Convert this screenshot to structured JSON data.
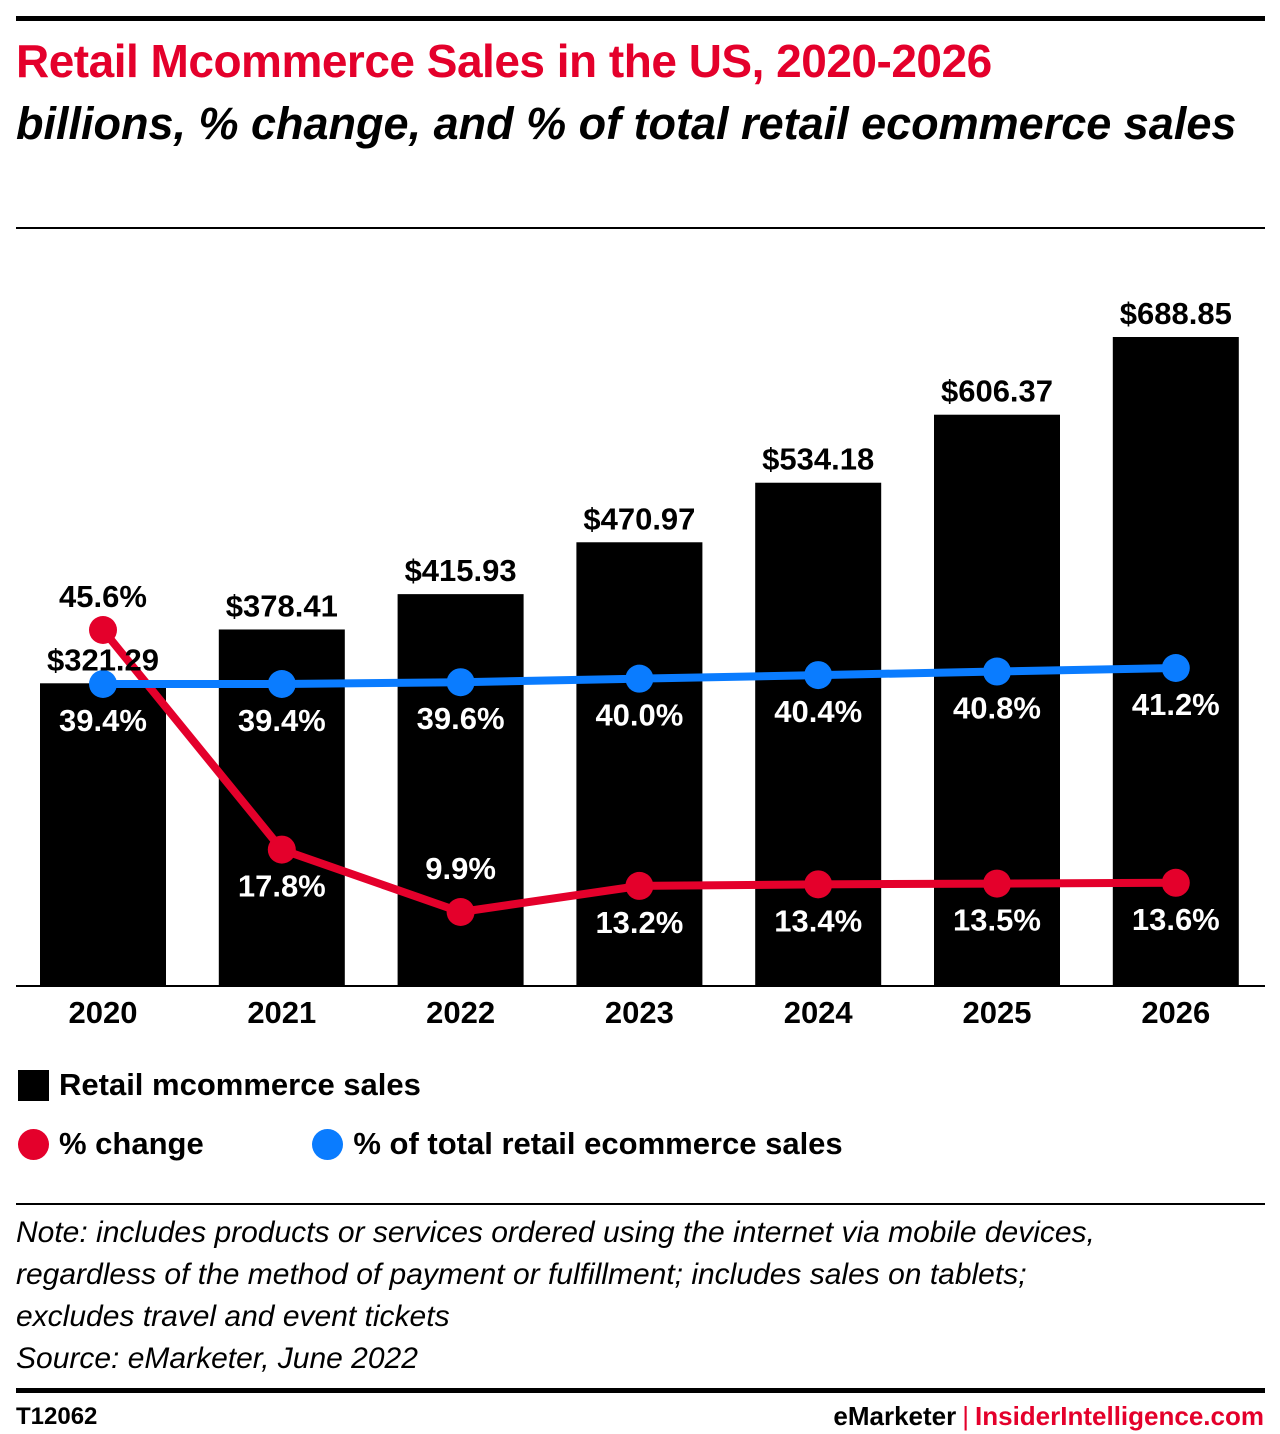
{
  "header": {
    "title": "Retail Mcommerce Sales in the US, 2020-2026",
    "subtitle": "billions, % change, and % of total retail ecommerce sales"
  },
  "chart_data": {
    "type": "bar",
    "categories": [
      "2020",
      "2021",
      "2022",
      "2023",
      "2024",
      "2025",
      "2026"
    ],
    "series": [
      {
        "name": "Retail mcommerce sales",
        "type": "bar",
        "values": [
          321.29,
          378.41,
          415.93,
          470.97,
          534.18,
          606.37,
          688.85
        ],
        "labels": [
          "$321.29",
          "$378.41",
          "$415.93",
          "$470.97",
          "$534.18",
          "$606.37",
          "$688.85"
        ],
        "color": "#000000"
      },
      {
        "name": "% change",
        "type": "line",
        "values": [
          45.6,
          17.8,
          9.9,
          13.2,
          13.4,
          13.5,
          13.6
        ],
        "labels": [
          "45.6%",
          "17.8%",
          "9.9%",
          "13.2%",
          "13.4%",
          "13.5%",
          "13.6%"
        ],
        "color": "#e4002b"
      },
      {
        "name": "% of total retail ecommerce sales",
        "type": "line",
        "values": [
          39.4,
          39.4,
          39.6,
          40.0,
          40.4,
          40.8,
          41.2
        ],
        "labels": [
          "39.4%",
          "39.4%",
          "39.6%",
          "40.0%",
          "40.4%",
          "40.8%",
          "41.2%"
        ],
        "color": "#0a7cff"
      }
    ],
    "grid": false,
    "legend": "bottom-left"
  },
  "legend": {
    "bars": "Retail mcommerce sales",
    "change": "% change",
    "share": "% of total retail ecommerce sales"
  },
  "footer": {
    "note_lines": [
      "Note: includes products or services ordered using the internet via mobile devices,",
      "regardless of the method of payment or fulfillment; includes sales on tablets;",
      "excludes travel and event tickets"
    ],
    "source": "Source: eMarketer, June 2022",
    "code": "T12062",
    "brand_emarketer": "eMarketer",
    "brand_separator": "|",
    "brand_insider": "InsiderIntelligence.com"
  }
}
